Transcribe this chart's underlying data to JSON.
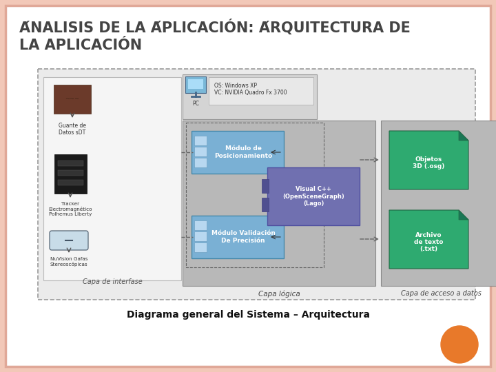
{
  "bg_color": "#f2c8b8",
  "slide_bg": "#ffffff",
  "title_line1": "ÁNALISIS DE LA ÁPLICACIÓN: ÁRQUITECTURA DE",
  "title_line2": "LA APLICACIÓN",
  "title_color": "#444444",
  "title_fontsize": 15,
  "caption": "Diagrama general del Sistema – Arquitectura",
  "caption_fontsize": 10,
  "orange_circle_color": "#e8792a",
  "border_color": "#e0a898"
}
